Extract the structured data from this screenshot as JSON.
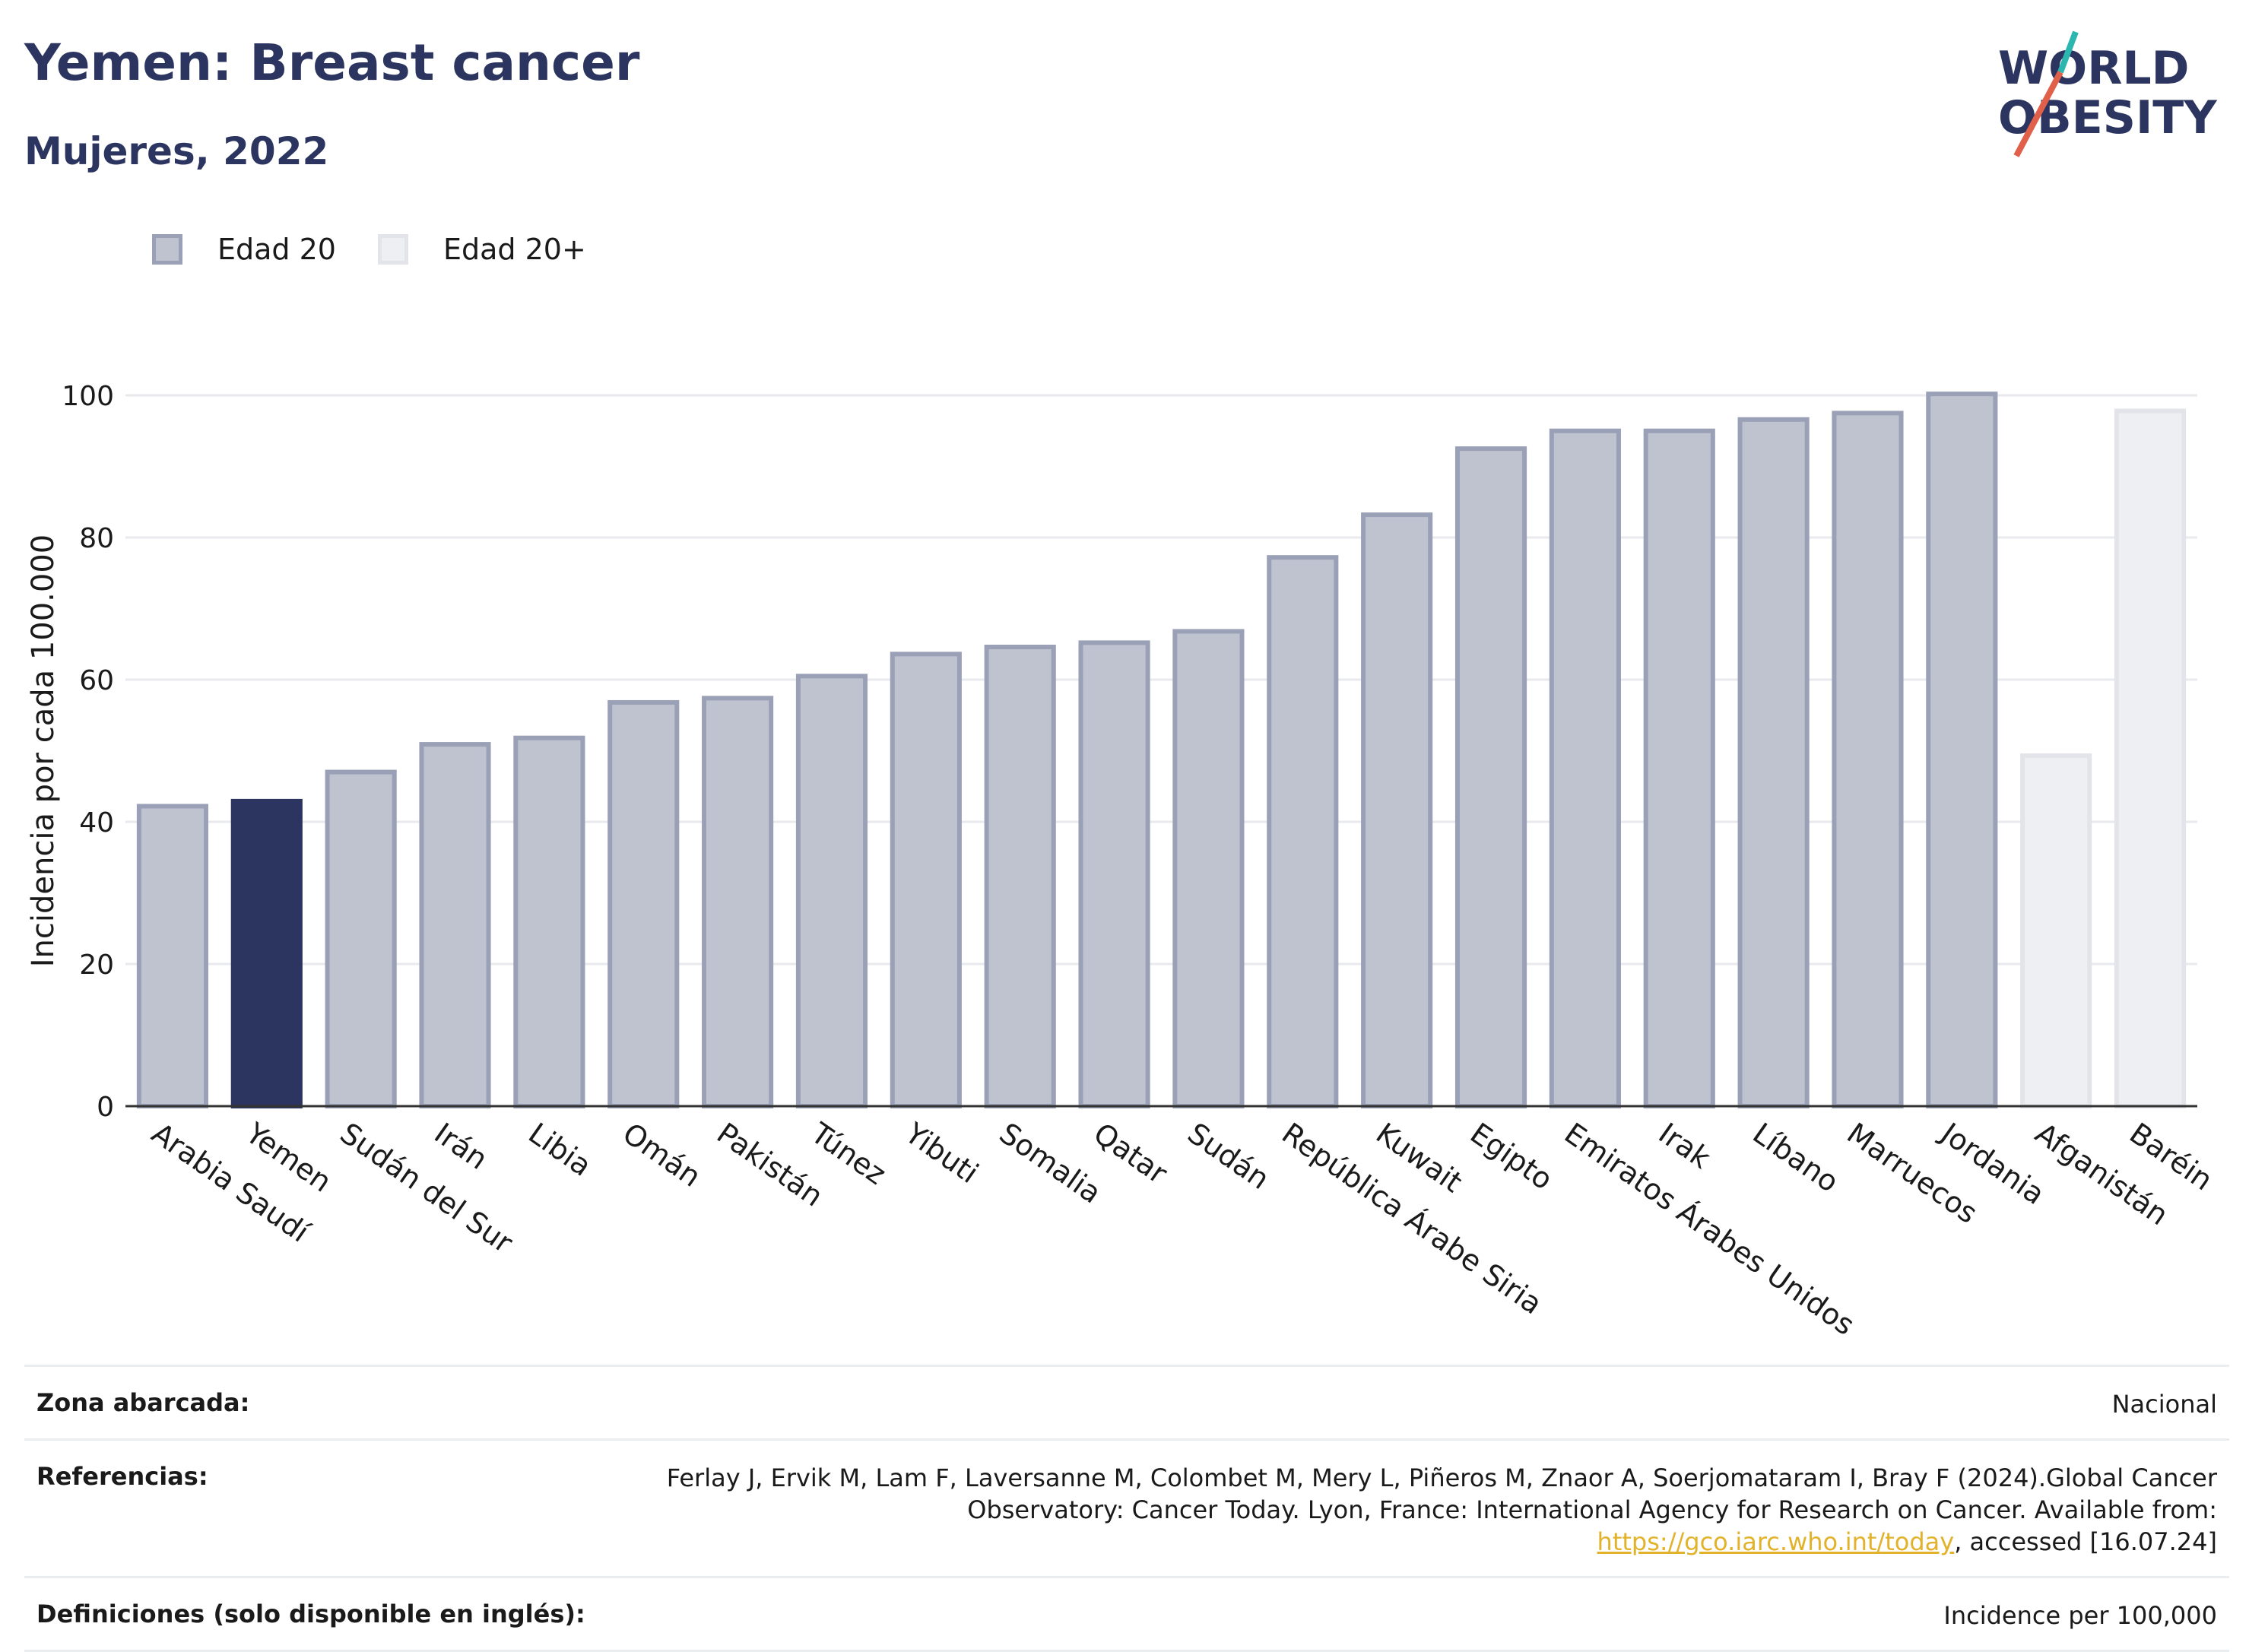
{
  "header": {
    "title": "Yemen: Breast cancer",
    "subtitle": "Mujeres, 2022"
  },
  "logo": {
    "line1": "WORLD",
    "line2": "OBESITY",
    "accent_teal": "#2bb6b0",
    "accent_red": "#e0604a",
    "text_color": "#2b3560"
  },
  "legend": [
    {
      "label": "Edad 20",
      "color": "#bfc3d0",
      "border": "#9aa0b6"
    },
    {
      "label": "Edad 20+",
      "color": "#eeeff3",
      "border": "#e2e4ea"
    }
  ],
  "chart_data": {
    "type": "bar",
    "ylabel": "Incidencia por cada 100.000",
    "xlabel": "",
    "ylim": [
      0,
      105
    ],
    "yticks": [
      0,
      20,
      40,
      60,
      80,
      100
    ],
    "grid": true,
    "legend_placement": "top-left",
    "highlight_color": "#2b3560",
    "categories": [
      "Arabia Saudí",
      "Yemen",
      "Sudán del Sur",
      "Irán",
      "Libia",
      "Omán",
      "Pakistán",
      "Túnez",
      "Yibuti",
      "Somalia",
      "Qatar",
      "Sudán",
      "República Árabe Siria",
      "Kuwait",
      "Egipto",
      "Emiratos Árabes Unidos",
      "Irak",
      "Líbano",
      "Marruecos",
      "Jordania",
      "Afganistán",
      "Baréin"
    ],
    "values": [
      42.2,
      42.9,
      47.0,
      50.9,
      51.8,
      56.8,
      57.4,
      60.5,
      63.6,
      64.6,
      65.2,
      66.8,
      77.2,
      83.2,
      92.5,
      95.0,
      95.0,
      96.6,
      97.5,
      100.2,
      49.3,
      97.8
    ],
    "series_group": [
      "Edad 20",
      "highlight",
      "Edad 20",
      "Edad 20",
      "Edad 20",
      "Edad 20",
      "Edad 20",
      "Edad 20",
      "Edad 20",
      "Edad 20",
      "Edad 20",
      "Edad 20",
      "Edad 20",
      "Edad 20",
      "Edad 20",
      "Edad 20",
      "Edad 20",
      "Edad 20",
      "Edad 20",
      "Edad 20",
      "Edad 20+",
      "Edad 20+"
    ]
  },
  "footer": {
    "coverage_label": "Zona abarcada:",
    "coverage_value": "Nacional",
    "references_label": "Referencias:",
    "references_text_before": "Ferlay J, Ervik M, Lam F, Laversanne M, Colombet M, Mery L, Piñeros M, Znaor A, Soerjomataram I, Bray F (2024).Global Cancer Observatory: Cancer Today. Lyon, France: International Agency for Research on Cancer. Available from: ",
    "references_link": "https://gco.iarc.who.int/today",
    "references_text_after": ", accessed [16.07.24]",
    "definitions_label": "Definiciones (solo disponible en inglés):",
    "definitions_value": "Incidence per 100,000"
  }
}
